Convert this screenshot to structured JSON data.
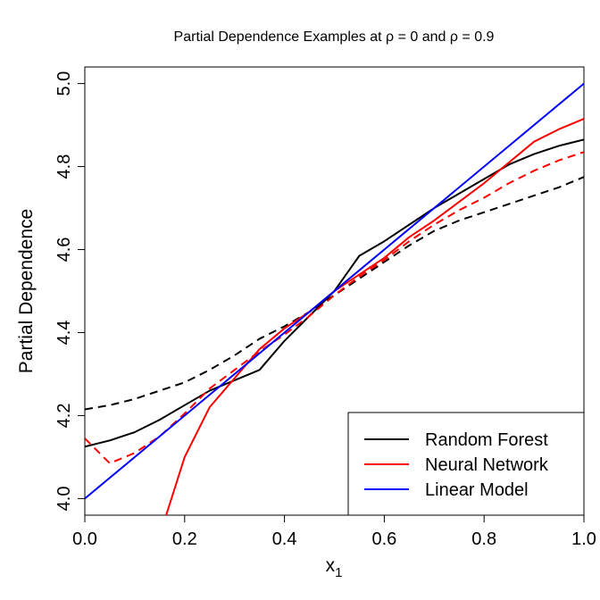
{
  "chart_data": {
    "type": "line",
    "title_prefix": "Partial Dependence Examples at ",
    "title_rho": "ρ",
    "title_eq0": " = 0 and ",
    "title_eq9": " = 0.9",
    "xlabel_main": "x",
    "xlabel_sub": "1",
    "ylabel": "Partial Dependence",
    "xlim": [
      0,
      1
    ],
    "ylim": [
      3.96,
      5.04
    ],
    "xticks": [
      0.0,
      0.2,
      0.4,
      0.6,
      0.8,
      1.0
    ],
    "xtick_labels": [
      "0.0",
      "0.2",
      "0.4",
      "0.6",
      "0.8",
      "1.0"
    ],
    "yticks": [
      4.0,
      4.2,
      4.4,
      4.6,
      4.8,
      5.0
    ],
    "ytick_labels": [
      "4.0",
      "4.2",
      "4.4",
      "4.6",
      "4.8",
      "5.0"
    ],
    "legend_position": "bottom-right",
    "legend": [
      {
        "label": "Random Forest",
        "color": "#000000"
      },
      {
        "label": "Neural Network",
        "color": "#ff0000"
      },
      {
        "label": "Linear Model",
        "color": "#0000ff"
      }
    ],
    "series": [
      {
        "name": "Random Forest (rho = 0)",
        "color": "#000000",
        "dash": false,
        "x": [
          0,
          0.05,
          0.1,
          0.15,
          0.2,
          0.25,
          0.3,
          0.35,
          0.4,
          0.45,
          0.5,
          0.55,
          0.6,
          0.65,
          0.7,
          0.75,
          0.8,
          0.85,
          0.9,
          0.95,
          1.0
        ],
        "y": [
          4.125,
          4.14,
          4.16,
          4.19,
          4.225,
          4.26,
          4.285,
          4.31,
          4.38,
          4.44,
          4.5,
          4.585,
          4.62,
          4.66,
          4.7,
          4.735,
          4.77,
          4.805,
          4.83,
          4.85,
          4.865
        ]
      },
      {
        "name": "Random Forest (rho = 0.9)",
        "color": "#000000",
        "dash": true,
        "x": [
          0,
          0.05,
          0.1,
          0.15,
          0.2,
          0.25,
          0.3,
          0.35,
          0.4,
          0.45,
          0.5,
          0.55,
          0.6,
          0.65,
          0.7,
          0.75,
          0.8,
          0.85,
          0.9,
          0.95,
          1.0
        ],
        "y": [
          4.215,
          4.225,
          4.24,
          4.26,
          4.28,
          4.31,
          4.345,
          4.385,
          4.415,
          4.45,
          4.49,
          4.53,
          4.57,
          4.61,
          4.645,
          4.67,
          4.69,
          4.71,
          4.73,
          4.75,
          4.775
        ]
      },
      {
        "name": "Neural Network (rho = 0)",
        "color": "#ff0000",
        "dash": false,
        "x": [
          0.163,
          0.2,
          0.25,
          0.3,
          0.35,
          0.4,
          0.45,
          0.5,
          0.55,
          0.6,
          0.65,
          0.7,
          0.75,
          0.8,
          0.85,
          0.9,
          0.95,
          1.0
        ],
        "y": [
          3.96,
          4.1,
          4.22,
          4.29,
          4.36,
          4.41,
          4.45,
          4.5,
          4.54,
          4.58,
          4.63,
          4.67,
          4.715,
          4.76,
          4.81,
          4.86,
          4.89,
          4.915
        ]
      },
      {
        "name": "Neural Network (rho = 0.9)",
        "color": "#ff0000",
        "dash": true,
        "x": [
          0,
          0.05,
          0.1,
          0.15,
          0.2,
          0.25,
          0.3,
          0.35,
          0.4,
          0.45,
          0.5,
          0.55,
          0.6,
          0.65,
          0.7,
          0.75,
          0.8,
          0.85,
          0.9,
          0.95,
          1.0
        ],
        "y": [
          4.145,
          4.085,
          4.11,
          4.15,
          4.205,
          4.265,
          4.31,
          4.355,
          4.395,
          4.44,
          4.49,
          4.535,
          4.575,
          4.62,
          4.66,
          4.695,
          4.725,
          4.76,
          4.79,
          4.815,
          4.835
        ]
      },
      {
        "name": "Linear Model",
        "color": "#0000ff",
        "dash": false,
        "x": [
          0,
          1
        ],
        "y": [
          4.0,
          5.0
        ]
      }
    ]
  }
}
